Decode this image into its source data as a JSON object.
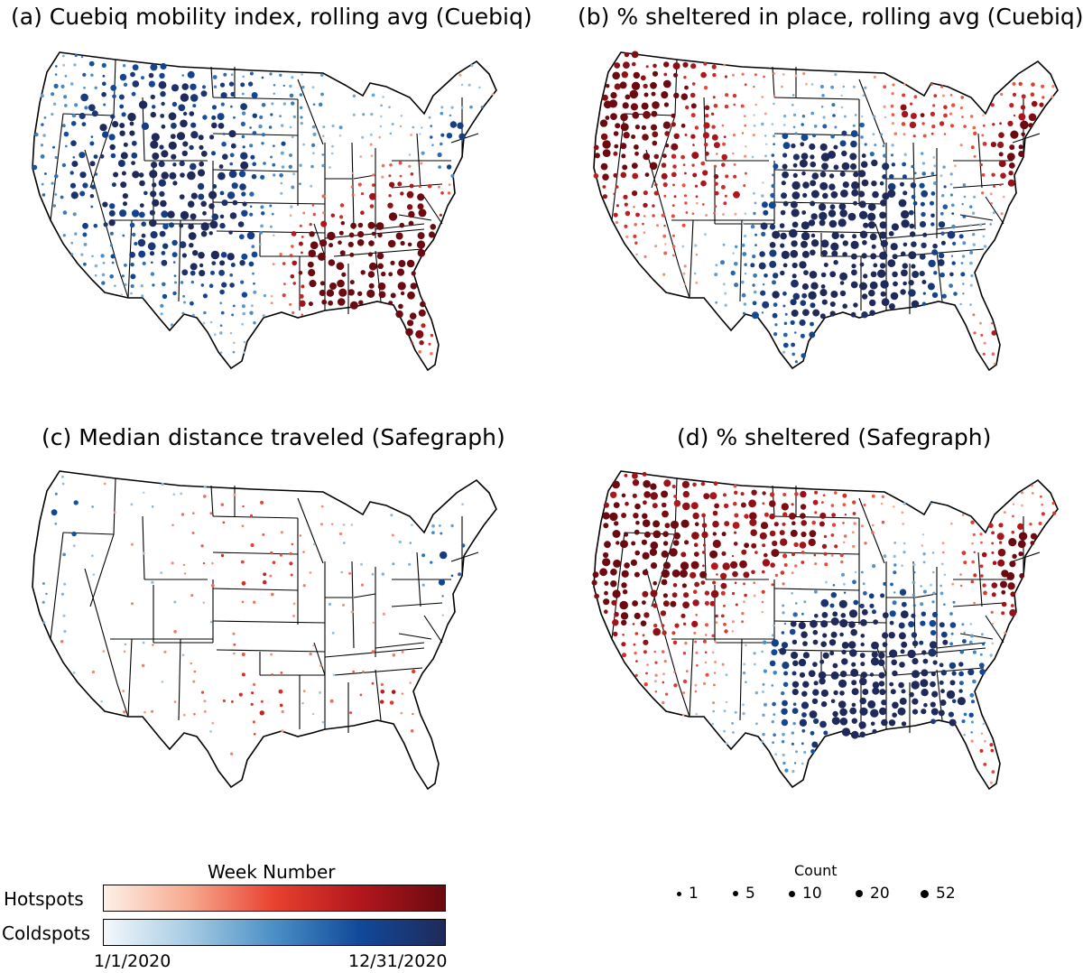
{
  "panels": [
    {
      "id": "a",
      "title": "(a) Cuebiq mobility index, rolling avg (Cuebiq)",
      "pattern": "cuebiq_mobility"
    },
    {
      "id": "b",
      "title": "(b) % sheltered in place, rolling avg (Cuebiq)",
      "pattern": "cuebiq_shelter"
    },
    {
      "id": "c",
      "title": "(c) Median distance traveled (Safegraph)",
      "pattern": "safegraph_distance"
    },
    {
      "id": "d",
      "title": "(d) % sheltered (Safegraph)",
      "pattern": "safegraph_shelter"
    }
  ],
  "legend": {
    "color_title": "Week Number",
    "hot_label": "Hotspots",
    "cold_label": "Coldspots",
    "start_date": "1/1/2020",
    "end_date": "12/31/2020",
    "hot_colors": [
      "#fdf1e8",
      "#f7a98e",
      "#e8412f",
      "#b2171d",
      "#6b0a10"
    ],
    "cold_colors": [
      "#f4f8fc",
      "#a6cbe3",
      "#4a8fc6",
      "#11499a",
      "#1f2a5a"
    ],
    "count_title": "Count",
    "count_values": [
      "1",
      "5",
      "10",
      "20",
      "52"
    ]
  }
}
